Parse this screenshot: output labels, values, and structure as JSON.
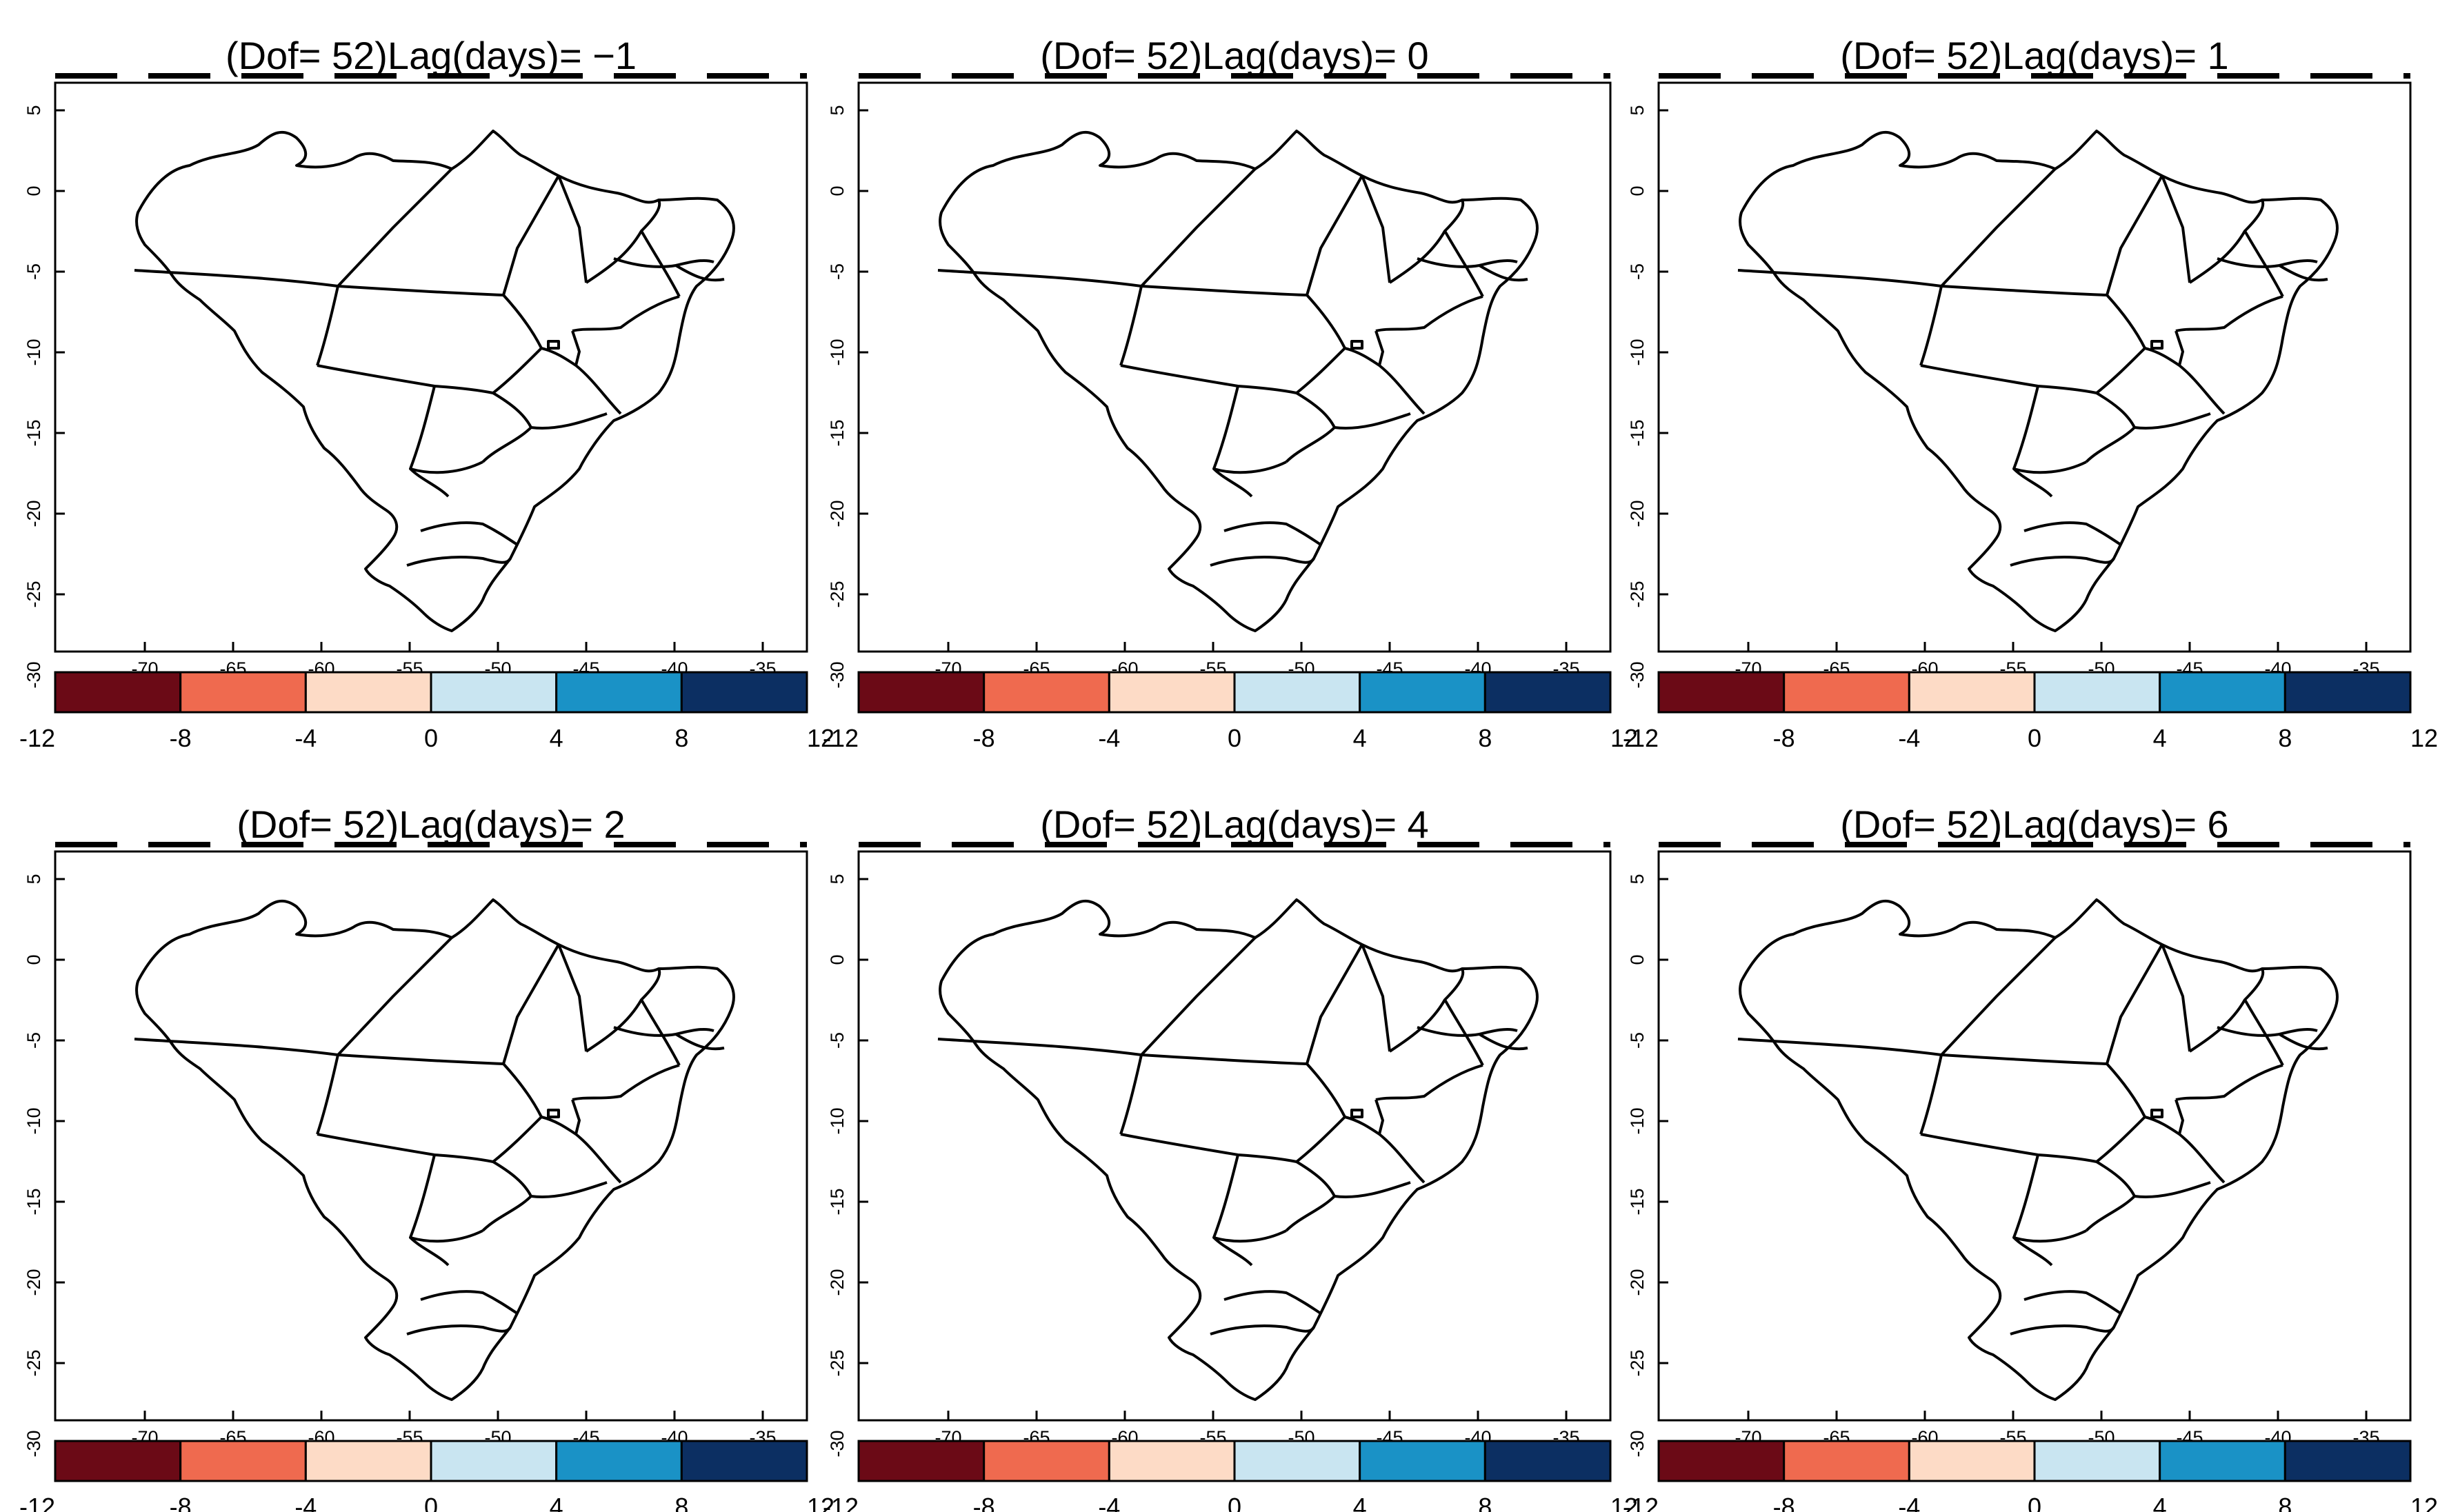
{
  "figure": {
    "panels": [
      {
        "title": "(Dof= 52)Lag(days)= −1",
        "lag": -1
      },
      {
        "title": "(Dof= 52)Lag(days)= 0",
        "lag": 0
      },
      {
        "title": "(Dof= 52)Lag(days)= 1",
        "lag": 1
      },
      {
        "title": "(Dof= 52)Lag(days)= 2",
        "lag": 2
      },
      {
        "title": "(Dof= 52)Lag(days)= 4",
        "lag": 4
      },
      {
        "title": "(Dof= 52)Lag(days)= 6",
        "lag": 6
      }
    ],
    "lon_ticks": [
      "-70",
      "-65",
      "-60",
      "-55",
      "-50",
      "-45",
      "-40",
      "-35"
    ],
    "lat_ticks": [
      "5",
      "0",
      "-5",
      "-10",
      "-15",
      "-20",
      "-25",
      "-30"
    ],
    "colorbar": {
      "labels": [
        "-12",
        "-8",
        "-4",
        "0",
        "4",
        "8",
        "12"
      ],
      "colors": [
        "#6b0a16",
        "#ef6a4f",
        "#fddbc6",
        "#c9e5f1",
        "#1a92c6",
        "#0c2f62"
      ]
    }
  }
}
